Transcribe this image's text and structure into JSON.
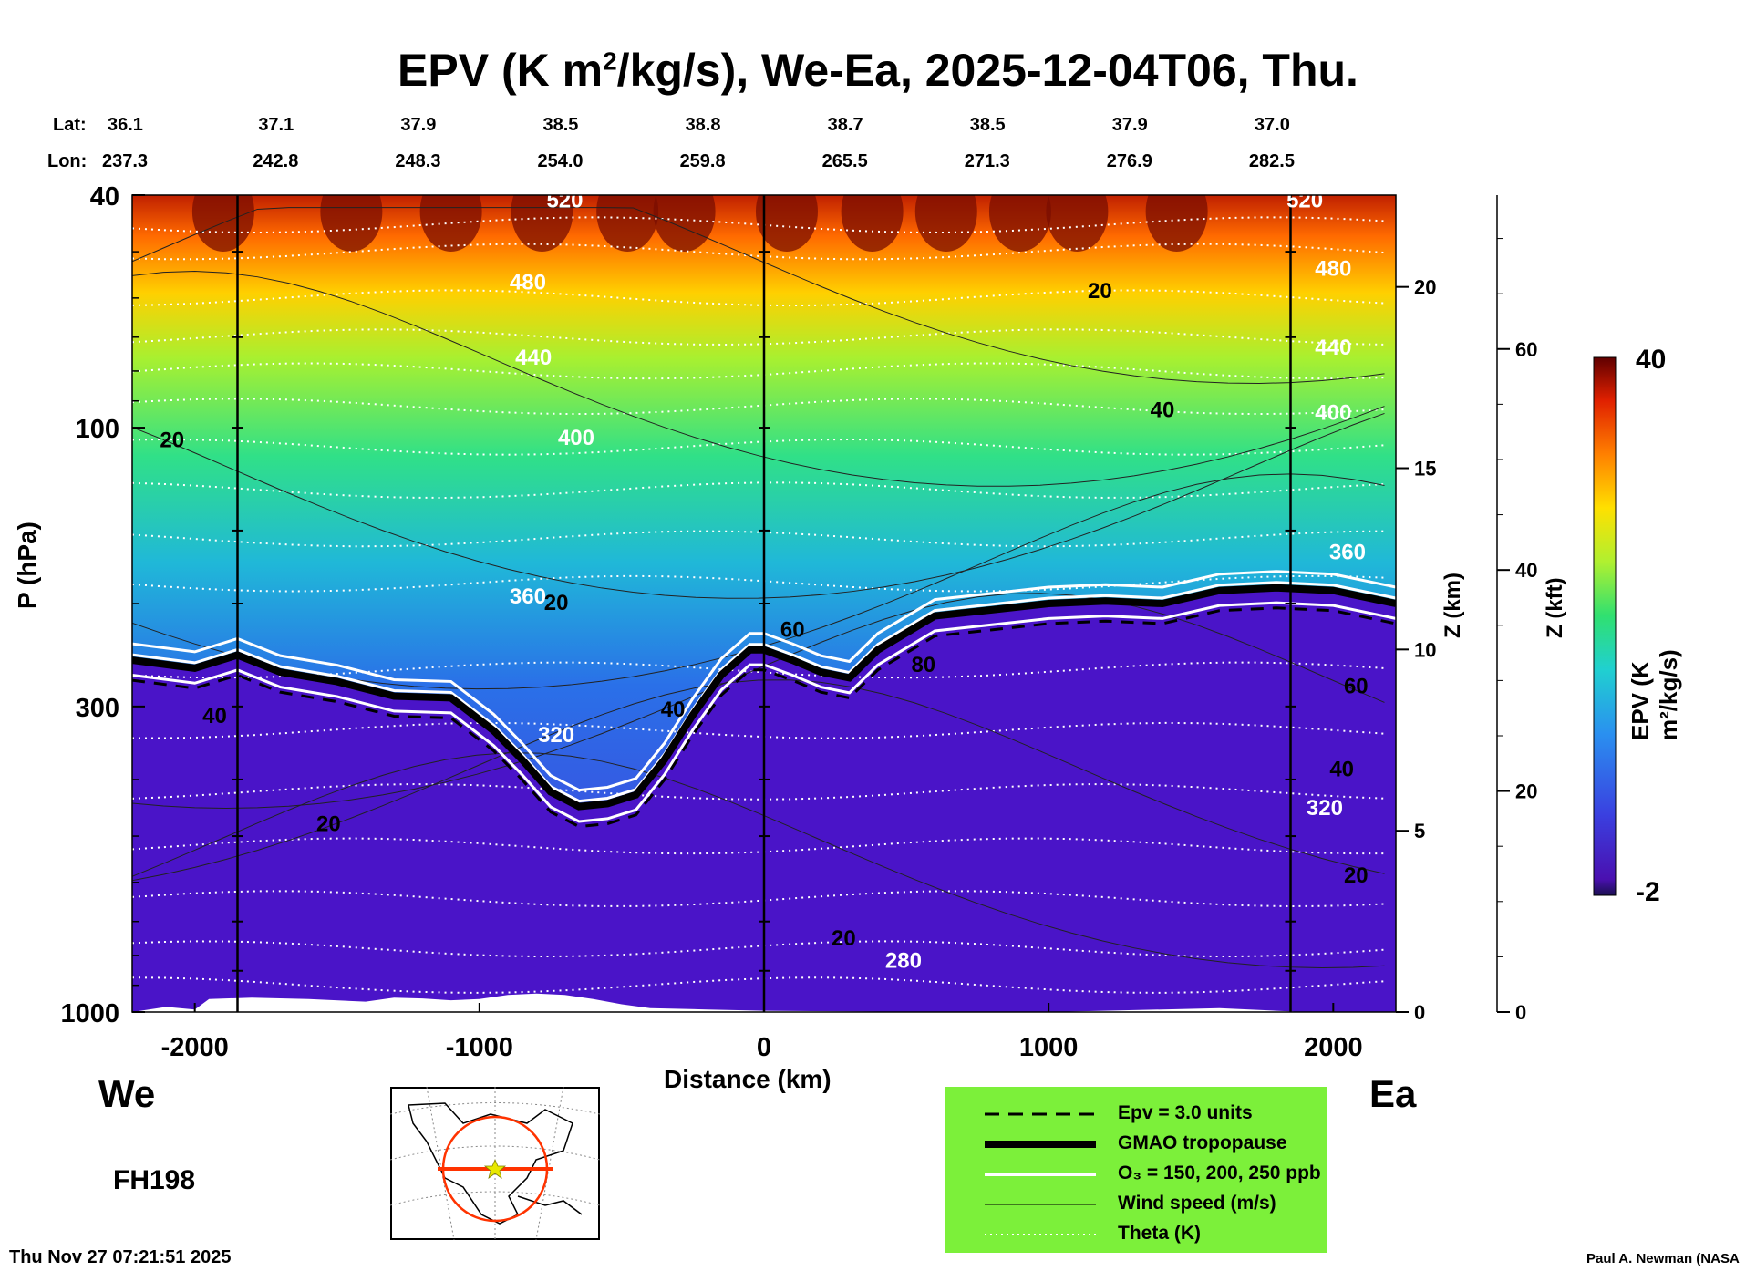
{
  "title_main": "EPV (K m",
  "title_sup": "2",
  "title_rest": "/kg/s), We-Ea, 2025-12-04T06, Thu.",
  "lat_label": "Lat:",
  "lon_label": "Lon:",
  "latitudes": [
    "36.1",
    "37.1",
    "37.9",
    "38.5",
    "38.8",
    "38.7",
    "38.5",
    "37.9",
    "37.0"
  ],
  "longitudes": [
    "237.3",
    "242.8",
    "248.3",
    "254.0",
    "259.8",
    "265.5",
    "271.3",
    "276.9",
    "282.5"
  ],
  "left_label": "We",
  "right_label": "Ea",
  "forecast_hour": "FH198",
  "timestamp": "Thu Nov 27 07:21:51 2025",
  "credit": "Paul A. Newman (NASA",
  "legend": {
    "items": [
      {
        "label": "Epv = 3.0 units",
        "style": "dashed"
      },
      {
        "label": "GMAO tropopause",
        "style": "thick"
      },
      {
        "label": "O₃ = 150, 200, 250 ppb",
        "style": "white"
      },
      {
        "label": "Wind speed (m/s)",
        "style": "thin"
      },
      {
        "label": "Theta (K)",
        "style": "dotted"
      }
    ],
    "background": "#7cf03a"
  },
  "colorbar": {
    "label": "EPV (K m²/kg/s)",
    "max_label": "40",
    "min_label": "-2"
  },
  "chart_data": {
    "type": "heatmap",
    "xlabel": "Distance (km)",
    "ylabel": "P (hPa)",
    "z_km_label": "Z (km)",
    "z_kft_label": "Z (kft)",
    "xlim": [
      -2220,
      2220
    ],
    "ylim": [
      1000,
      40
    ],
    "y_scale": "log",
    "x_ticks": [
      -2000,
      -1000,
      0,
      1000,
      2000
    ],
    "x_tick_labels": [
      "-2000",
      "-1000",
      "0",
      "1000",
      "2000"
    ],
    "y_ticks": [
      40,
      100,
      300,
      1000
    ],
    "y_tick_labels": [
      "40",
      "100",
      "300",
      "1000"
    ],
    "z_km_ticks": [
      0,
      5,
      10,
      15,
      20
    ],
    "z_km_tick_labels": [
      "0",
      "5",
      "10",
      "15",
      "20"
    ],
    "z_kft_ticks": [
      0,
      20,
      40,
      60
    ],
    "z_kft_tick_labels": [
      "0",
      "20",
      "40",
      "60"
    ],
    "vertical_lines_km": [
      -1850,
      0,
      1850
    ],
    "colorbar_range": [
      -2,
      40
    ],
    "tropopause": {
      "x": [
        -2220,
        -2000,
        -1850,
        -1700,
        -1500,
        -1300,
        -1100,
        -950,
        -850,
        -750,
        -650,
        -550,
        -450,
        -350,
        -250,
        -150,
        -50,
        0,
        100,
        200,
        300,
        400,
        600,
        800,
        1000,
        1200,
        1400,
        1600,
        1800,
        2000,
        2220
      ],
      "p": [
        250,
        258,
        245,
        262,
        272,
        288,
        290,
        330,
        370,
        420,
        445,
        440,
        425,
        370,
        310,
        265,
        240,
        240,
        250,
        262,
        268,
        240,
        210,
        205,
        200,
        198,
        200,
        190,
        188,
        190,
        200
      ]
    },
    "theta_labels": [
      {
        "label": "520",
        "x": -700,
        "p": 42
      },
      {
        "label": "520",
        "x": 1900,
        "p": 42
      },
      {
        "label": "480",
        "x": -830,
        "p": 58
      },
      {
        "label": "480",
        "x": 2000,
        "p": 55
      },
      {
        "label": "440",
        "x": -810,
        "p": 78
      },
      {
        "label": "440",
        "x": 2000,
        "p": 75
      },
      {
        "label": "400",
        "x": -660,
        "p": 107
      },
      {
        "label": "400",
        "x": 2000,
        "p": 97
      },
      {
        "label": "360",
        "x": -830,
        "p": 200
      },
      {
        "label": "360",
        "x": 2050,
        "p": 168
      },
      {
        "label": "320",
        "x": -730,
        "p": 345
      },
      {
        "label": "320",
        "x": 1970,
        "p": 460
      },
      {
        "label": "280",
        "x": 490,
        "p": 840
      }
    ],
    "wind_labels": [
      {
        "label": "20",
        "x": -2080,
        "p": 108
      },
      {
        "label": "20",
        "x": -730,
        "p": 205
      },
      {
        "label": "20",
        "x": 1180,
        "p": 60
      },
      {
        "label": "40",
        "x": 1400,
        "p": 96
      },
      {
        "label": "60",
        "x": 100,
        "p": 228
      },
      {
        "label": "80",
        "x": 560,
        "p": 262
      },
      {
        "label": "60",
        "x": 2080,
        "p": 285
      },
      {
        "label": "40",
        "x": -1930,
        "p": 320
      },
      {
        "label": "40",
        "x": -320,
        "p": 312
      },
      {
        "label": "40",
        "x": 2030,
        "p": 395
      },
      {
        "label": "20",
        "x": -1530,
        "p": 490
      },
      {
        "label": "20",
        "x": 280,
        "p": 770
      },
      {
        "label": "20",
        "x": 2080,
        "p": 600
      }
    ]
  }
}
